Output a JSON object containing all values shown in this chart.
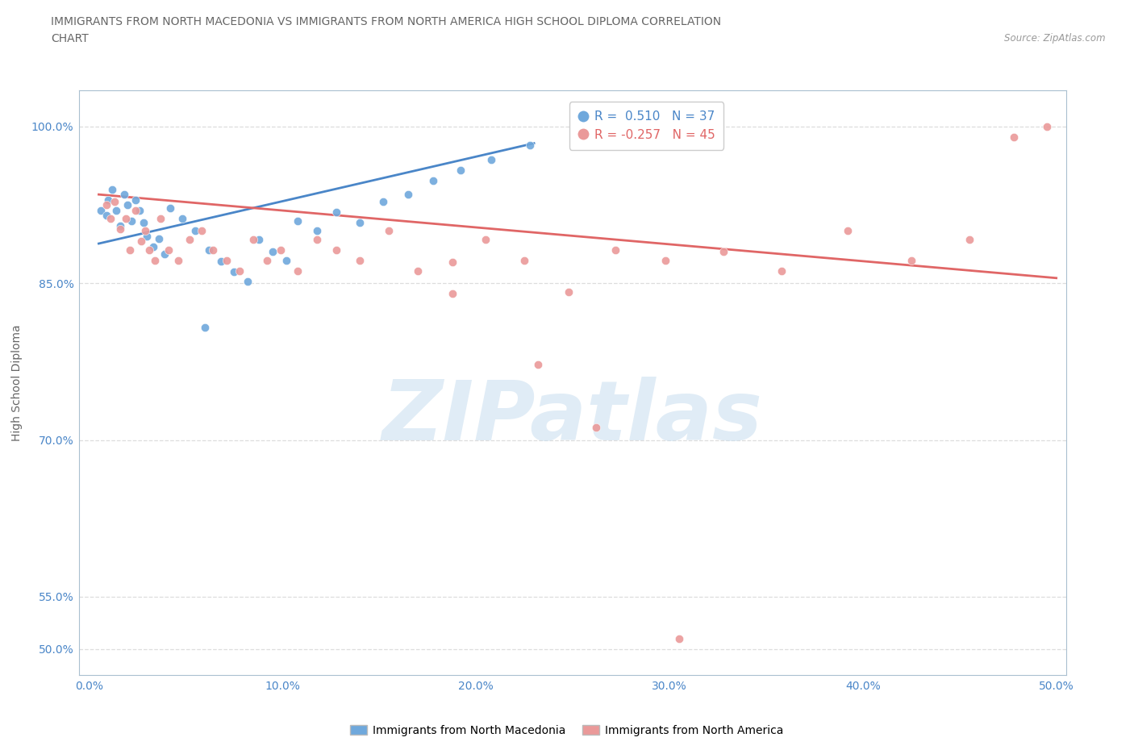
{
  "title_line1": "IMMIGRANTS FROM NORTH MACEDONIA VS IMMIGRANTS FROM NORTH AMERICA HIGH SCHOOL DIPLOMA CORRELATION",
  "title_line2": "CHART",
  "source_text": "Source: ZipAtlas.com",
  "ylabel": "High School Diploma",
  "xlim": [
    -0.005,
    0.505
  ],
  "ylim": [
    0.475,
    1.035
  ],
  "ytick_labels": [
    "50.0%",
    "55.0%",
    "70.0%",
    "85.0%",
    "100.0%"
  ],
  "ytick_values": [
    0.5,
    0.55,
    0.7,
    0.85,
    1.0
  ],
  "xtick_labels": [
    "0.0%",
    "10.0%",
    "20.0%",
    "30.0%",
    "40.0%",
    "50.0%"
  ],
  "xtick_values": [
    0.0,
    0.1,
    0.2,
    0.3,
    0.4,
    0.5
  ],
  "blue_label": "Immigrants from North Macedonia",
  "pink_label": "Immigrants from North America",
  "legend_r1": "R =  0.510   N = 37",
  "legend_r2": "R = -0.257   N = 45",
  "blue_color": "#6fa8dc",
  "pink_color": "#ea9999",
  "blue_line_color": "#4a86c8",
  "pink_line_color": "#e06666",
  "title_color": "#666666",
  "axis_label_color": "#4a86c8",
  "grid_color": "#dddddd",
  "spine_color": "#aac0d0",
  "watermark_color": "#cce0f0",
  "blue_scatter": [
    [
      0.006,
      0.92
    ],
    [
      0.009,
      0.915
    ],
    [
      0.01,
      0.93
    ],
    [
      0.012,
      0.94
    ],
    [
      0.014,
      0.92
    ],
    [
      0.016,
      0.905
    ],
    [
      0.018,
      0.935
    ],
    [
      0.02,
      0.925
    ],
    [
      0.022,
      0.91
    ],
    [
      0.024,
      0.93
    ],
    [
      0.026,
      0.92
    ],
    [
      0.028,
      0.908
    ],
    [
      0.03,
      0.895
    ],
    [
      0.033,
      0.885
    ],
    [
      0.036,
      0.893
    ],
    [
      0.039,
      0.878
    ],
    [
      0.042,
      0.922
    ],
    [
      0.048,
      0.912
    ],
    [
      0.055,
      0.9
    ],
    [
      0.062,
      0.882
    ],
    [
      0.068,
      0.871
    ],
    [
      0.075,
      0.861
    ],
    [
      0.082,
      0.852
    ],
    [
      0.088,
      0.892
    ],
    [
      0.095,
      0.88
    ],
    [
      0.102,
      0.872
    ],
    [
      0.108,
      0.91
    ],
    [
      0.118,
      0.9
    ],
    [
      0.128,
      0.918
    ],
    [
      0.14,
      0.908
    ],
    [
      0.152,
      0.928
    ],
    [
      0.165,
      0.935
    ],
    [
      0.178,
      0.948
    ],
    [
      0.192,
      0.958
    ],
    [
      0.208,
      0.968
    ],
    [
      0.228,
      0.982
    ],
    [
      0.06,
      0.808
    ]
  ],
  "pink_scatter": [
    [
      0.009,
      0.925
    ],
    [
      0.011,
      0.912
    ],
    [
      0.013,
      0.928
    ],
    [
      0.016,
      0.902
    ],
    [
      0.019,
      0.912
    ],
    [
      0.021,
      0.882
    ],
    [
      0.024,
      0.92
    ],
    [
      0.027,
      0.89
    ],
    [
      0.029,
      0.9
    ],
    [
      0.031,
      0.882
    ],
    [
      0.034,
      0.872
    ],
    [
      0.037,
      0.912
    ],
    [
      0.041,
      0.882
    ],
    [
      0.046,
      0.872
    ],
    [
      0.052,
      0.892
    ],
    [
      0.058,
      0.9
    ],
    [
      0.064,
      0.882
    ],
    [
      0.071,
      0.872
    ],
    [
      0.078,
      0.862
    ],
    [
      0.085,
      0.892
    ],
    [
      0.092,
      0.872
    ],
    [
      0.099,
      0.882
    ],
    [
      0.108,
      0.862
    ],
    [
      0.118,
      0.892
    ],
    [
      0.128,
      0.882
    ],
    [
      0.14,
      0.872
    ],
    [
      0.155,
      0.9
    ],
    [
      0.17,
      0.862
    ],
    [
      0.188,
      0.84
    ],
    [
      0.205,
      0.892
    ],
    [
      0.225,
      0.872
    ],
    [
      0.248,
      0.842
    ],
    [
      0.272,
      0.882
    ],
    [
      0.298,
      0.872
    ],
    [
      0.328,
      0.88
    ],
    [
      0.358,
      0.862
    ],
    [
      0.392,
      0.9
    ],
    [
      0.425,
      0.872
    ],
    [
      0.455,
      0.892
    ],
    [
      0.478,
      0.99
    ],
    [
      0.495,
      1.0
    ],
    [
      0.232,
      0.772
    ],
    [
      0.262,
      0.712
    ],
    [
      0.305,
      0.51
    ],
    [
      0.188,
      0.87
    ]
  ],
  "blue_trend_x": [
    0.005,
    0.23
  ],
  "blue_trend_y": [
    0.888,
    0.984
  ],
  "pink_trend_x": [
    0.005,
    0.5
  ],
  "pink_trend_y": [
    0.935,
    0.855
  ]
}
